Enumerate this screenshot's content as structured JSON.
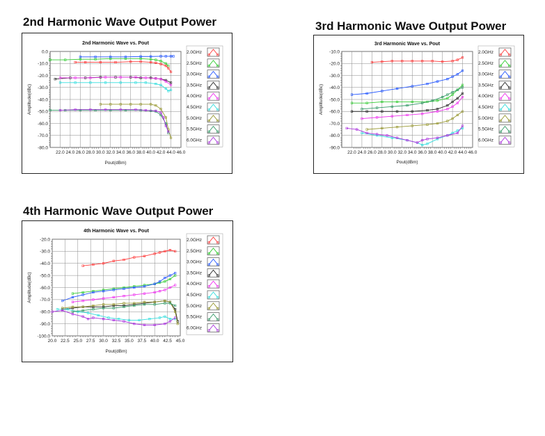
{
  "sections": [
    {
      "title": "2nd Harmonic Wave Output Power"
    },
    {
      "title": "3rd Harmonic Wave Output Power"
    },
    {
      "title": "4th Harmonic Wave Output Power"
    }
  ],
  "legend_colors": [
    "#ff3b3b",
    "#33cc33",
    "#2255ff",
    "#222222",
    "#ee33ee",
    "#33dddd",
    "#999933",
    "#339966",
    "#aa33dd"
  ],
  "chart_data": [
    {
      "type": "line",
      "title": "2nd Harmonic Wave vs. Pout",
      "xlabel": "Pout(dBm)",
      "ylabel": "Amplitude(dBc)",
      "xlim": [
        20.0,
        46.0
      ],
      "ylim": [
        -80.0,
        0.0
      ],
      "xticks": [
        22.0,
        24.0,
        26.0,
        28.0,
        30.0,
        32.0,
        34.0,
        36.0,
        38.0,
        40.0,
        42.0,
        44.0,
        46.0
      ],
      "xtick_labels": [
        "22.0",
        "24.0",
        "26.0",
        "28.0",
        "30.0",
        "32.0",
        "34.0",
        "36.0",
        "38.0",
        "40.0",
        "42.0",
        "44.0",
        "46.0"
      ],
      "yticks": [
        0,
        -10,
        -20,
        -30,
        -40,
        -50,
        -60,
        -70,
        -80
      ],
      "ytick_labels": [
        "0.0",
        "-10.0",
        "-20.0",
        "-30.0",
        "-40.0",
        "-50.0",
        "-60.0",
        "-70.0",
        "-80.0"
      ],
      "grid": true,
      "legend_position": "right",
      "series": [
        {
          "name": "2.0GHz",
          "x": [
            25,
            27,
            30,
            33,
            36,
            38,
            40,
            41,
            42,
            43,
            43.5,
            44
          ],
          "y": [
            -9,
            -9,
            -9,
            -9,
            -8.5,
            -8.5,
            -9,
            -9.5,
            -10.5,
            -12,
            -14,
            -17
          ]
        },
        {
          "name": "2.5GHz",
          "x": [
            20,
            23,
            26,
            29,
            32,
            35,
            38,
            40,
            41,
            42,
            43,
            43.5
          ],
          "y": [
            -7,
            -7,
            -6.5,
            -6.5,
            -6,
            -6,
            -6,
            -6.5,
            -7,
            -8,
            -10,
            -12
          ]
        },
        {
          "name": "3.0GHz",
          "x": [
            26,
            29,
            32,
            35,
            38,
            40,
            42,
            43,
            44,
            44.5
          ],
          "y": [
            -4.5,
            -4.5,
            -4.5,
            -4.5,
            -4.2,
            -4.2,
            -4,
            -4,
            -4,
            -4
          ]
        },
        {
          "name": "3.5GHz",
          "x": [
            21,
            24,
            27,
            30,
            33,
            36,
            38,
            40,
            41,
            42,
            43,
            44
          ],
          "y": [
            -23,
            -22,
            -22,
            -21.5,
            -21.5,
            -21.5,
            -22,
            -22,
            -22.5,
            -23,
            -24,
            -26
          ]
        },
        {
          "name": "4.0GHz",
          "x": [
            22,
            25,
            28,
            31,
            34,
            37,
            39,
            41,
            42,
            43,
            44
          ],
          "y": [
            -22,
            -22,
            -22,
            -21.5,
            -21.5,
            -21.5,
            -22,
            -22.5,
            -23,
            -25,
            -28
          ]
        },
        {
          "name": "4.5GHz",
          "x": [
            22,
            25,
            28,
            31,
            34,
            37,
            39,
            41,
            42,
            43,
            43.5,
            44
          ],
          "y": [
            -26,
            -26,
            -26,
            -26,
            -26,
            -26,
            -26,
            -27,
            -28,
            -31,
            -33,
            -32
          ]
        },
        {
          "name": "5.0GHz",
          "x": [
            30,
            32,
            34,
            36,
            38,
            40,
            41,
            42,
            43,
            43.5,
            44
          ],
          "y": [
            -44,
            -44,
            -44,
            -44,
            -44,
            -44,
            -45,
            -48,
            -55,
            -65,
            -72
          ]
        },
        {
          "name": "5.5GHz",
          "x": [
            20,
            23,
            26,
            29,
            32,
            35,
            38,
            40,
            41,
            42,
            43,
            43.5
          ],
          "y": [
            -49,
            -49,
            -49,
            -49,
            -49,
            -49,
            -49,
            -49.5,
            -50,
            -53,
            -60,
            -68
          ]
        },
        {
          "name": "6.0GHz",
          "x": [
            22,
            25,
            28,
            31,
            34,
            37,
            39,
            41,
            42,
            42.5,
            43,
            43.5
          ],
          "y": [
            -49,
            -48.5,
            -48.5,
            -48.5,
            -48.5,
            -48.5,
            -49,
            -49.5,
            -51,
            -55,
            -62,
            -67
          ]
        }
      ]
    },
    {
      "type": "line",
      "title": "3rd Harmonic Wave vs. Pout",
      "xlabel": "Pout(dBm)",
      "ylabel": "Amplitude(dBc)",
      "xlim": [
        20.0,
        46.0
      ],
      "ylim": [
        -90.0,
        -10.0
      ],
      "xticks": [
        22.0,
        24.0,
        26.0,
        28.0,
        30.0,
        32.0,
        34.0,
        36.0,
        38.0,
        40.0,
        42.0,
        44.0,
        46.0
      ],
      "xtick_labels": [
        "22.0",
        "24.0",
        "26.0",
        "28.0",
        "30.0",
        "32.0",
        "34.0",
        "36.0",
        "38.0",
        "40.0",
        "42.0",
        "44.0",
        "46.0"
      ],
      "yticks": [
        -10,
        -20,
        -30,
        -40,
        -50,
        -60,
        -70,
        -80,
        -90
      ],
      "ytick_labels": [
        "-10.0",
        "-20.0",
        "-30.0",
        "-40.0",
        "-50.0",
        "-60.0",
        "-70.0",
        "-80.0",
        "-90.0"
      ],
      "grid": true,
      "legend_position": "right",
      "series": [
        {
          "name": "2.0GHz",
          "x": [
            26,
            28,
            30,
            32,
            34,
            36,
            38,
            40,
            42,
            43,
            44
          ],
          "y": [
            -19,
            -18.5,
            -18,
            -18,
            -18,
            -18,
            -18,
            -18.5,
            -18,
            -17,
            -15
          ]
        },
        {
          "name": "2.5GHz",
          "x": [
            22,
            25,
            28,
            31,
            34,
            37,
            39,
            41,
            42,
            43,
            44
          ],
          "y": [
            -53,
            -53,
            -52,
            -52,
            -52,
            -52,
            -51,
            -49,
            -46,
            -42,
            -38
          ]
        },
        {
          "name": "3.0GHz",
          "x": [
            22,
            25,
            28,
            31,
            34,
            37,
            39,
            41,
            42,
            43,
            44
          ],
          "y": [
            -46,
            -45,
            -43,
            -41,
            -39,
            -37,
            -35,
            -33,
            -31,
            -29,
            -26
          ]
        },
        {
          "name": "3.5GHz",
          "x": [
            22,
            25,
            28,
            31,
            34,
            37,
            39,
            41,
            42,
            43,
            44
          ],
          "y": [
            -60,
            -60,
            -60,
            -60,
            -60,
            -59,
            -58,
            -55,
            -52,
            -49,
            -45
          ]
        },
        {
          "name": "4.0GHz",
          "x": [
            24,
            27,
            30,
            33,
            36,
            39,
            41,
            42,
            43,
            44
          ],
          "y": [
            -66,
            -65,
            -64,
            -63,
            -62,
            -60,
            -58,
            -56,
            -53,
            -48
          ]
        },
        {
          "name": "4.5GHz",
          "x": [
            24,
            27,
            30,
            33,
            35,
            36,
            37,
            39,
            41,
            42,
            43,
            44
          ],
          "y": [
            -78,
            -80,
            -82,
            -84,
            -86,
            -88,
            -87,
            -83,
            -80,
            -78,
            -76,
            -74
          ]
        },
        {
          "name": "5.0GHz",
          "x": [
            25,
            28,
            31,
            34,
            37,
            39,
            41,
            42,
            43,
            44
          ],
          "y": [
            -75,
            -74,
            -73,
            -72,
            -71,
            -70,
            -68,
            -66,
            -63,
            -60
          ]
        },
        {
          "name": "5.5GHz",
          "x": [
            24,
            27,
            30,
            33,
            36,
            38,
            40,
            41,
            42,
            43,
            44
          ],
          "y": [
            -58,
            -57,
            -56,
            -55,
            -53,
            -51,
            -48,
            -46,
            -44,
            -42,
            -40
          ]
        },
        {
          "name": "6.0GHz",
          "x": [
            21,
            23,
            25,
            27,
            29,
            31,
            33,
            35,
            36,
            37,
            39,
            41,
            43,
            44
          ],
          "y": [
            -74,
            -75,
            -78,
            -79,
            -80,
            -82,
            -84,
            -86,
            -84,
            -83,
            -82,
            -80,
            -78,
            -72
          ]
        }
      ]
    },
    {
      "type": "line",
      "title": "4th Harmonic Wave vs. Pout",
      "xlabel": "Pout(dBm)",
      "ylabel": "Amplitude(dBc)",
      "xlim": [
        20.0,
        45.0
      ],
      "ylim": [
        -100.0,
        -20.0
      ],
      "xticks": [
        20.0,
        22.5,
        25.0,
        27.5,
        30.0,
        32.5,
        35.0,
        37.5,
        40.0,
        42.5,
        45.0
      ],
      "xtick_labels": [
        "20.0",
        "22.5",
        "25.0",
        "27.5",
        "30.0",
        "32.5",
        "35.0",
        "37.5",
        "40.0",
        "42.5",
        "45.0"
      ],
      "yticks": [
        -20,
        -30,
        -40,
        -50,
        -60,
        -70,
        -80,
        -90,
        -100
      ],
      "ytick_labels": [
        "-20.0",
        "-30.0",
        "-40.0",
        "-50.0",
        "-60.0",
        "-70.0",
        "-80.0",
        "-90.0",
        "-100.0"
      ],
      "grid": true,
      "legend_position": "right",
      "series": [
        {
          "name": "2.0GHz",
          "x": [
            26,
            28,
            30,
            32,
            34,
            36,
            38,
            40,
            41,
            42,
            43,
            44
          ],
          "y": [
            -42,
            -41,
            -40,
            -38,
            -37,
            -35,
            -34,
            -32,
            -31,
            -30,
            -29,
            -30
          ]
        },
        {
          "name": "2.5GHz",
          "x": [
            24,
            26,
            28,
            30,
            32,
            34,
            36,
            38,
            40,
            41,
            42,
            43,
            44
          ],
          "y": [
            -65,
            -64,
            -63,
            -62,
            -61,
            -60,
            -59,
            -58,
            -57,
            -56,
            -55,
            -53,
            -50
          ]
        },
        {
          "name": "3.0GHz",
          "x": [
            22,
            24,
            26,
            28,
            30,
            32,
            34,
            36,
            38,
            40,
            41,
            42,
            43,
            44
          ],
          "y": [
            -71,
            -68,
            -66,
            -64,
            -63,
            -62,
            -61,
            -60,
            -59,
            -57,
            -55,
            -52,
            -50,
            -48
          ]
        },
        {
          "name": "3.5GHz",
          "x": [
            22,
            24,
            26,
            28,
            30,
            32,
            34,
            36,
            38,
            40,
            42,
            43,
            44,
            44.5
          ],
          "y": [
            -78,
            -77,
            -76,
            -76,
            -76,
            -75,
            -75,
            -74,
            -73,
            -72,
            -71,
            -72,
            -78,
            -88
          ]
        },
        {
          "name": "4.0GHz",
          "x": [
            24,
            26,
            28,
            30,
            32,
            34,
            36,
            38,
            40,
            41,
            42,
            43,
            44
          ],
          "y": [
            -72,
            -71,
            -70,
            -69,
            -68,
            -67,
            -66,
            -65,
            -64,
            -63,
            -62,
            -60,
            -58
          ]
        },
        {
          "name": "4.5GHz",
          "x": [
            21,
            23,
            25,
            27,
            29,
            31,
            33,
            35,
            37,
            39,
            41,
            42,
            43,
            44
          ],
          "y": [
            -78,
            -78,
            -80,
            -81,
            -83,
            -85,
            -86,
            -87,
            -87,
            -86,
            -85,
            -84,
            -86,
            -86
          ]
        },
        {
          "name": "5.0GHz",
          "x": [
            22,
            24,
            26,
            28,
            30,
            32,
            34,
            36,
            38,
            40,
            42,
            43,
            44,
            44.5
          ],
          "y": [
            -77,
            -76,
            -76,
            -75,
            -74,
            -74,
            -73,
            -73,
            -72,
            -72,
            -71,
            -72,
            -80,
            -90
          ]
        },
        {
          "name": "5.5GHz",
          "x": [
            24,
            26,
            28,
            30,
            32,
            34,
            36,
            38,
            40,
            42,
            43,
            44
          ],
          "y": [
            -80,
            -79,
            -78,
            -77,
            -77,
            -76,
            -75,
            -74,
            -74,
            -73,
            -73,
            -75
          ]
        },
        {
          "name": "6.0GHz",
          "x": [
            20,
            22,
            24,
            26,
            27,
            28,
            30,
            32,
            34,
            36,
            38,
            40,
            42,
            43,
            44
          ],
          "y": [
            -80,
            -79,
            -82,
            -84,
            -86,
            -85,
            -86,
            -87,
            -88,
            -90,
            -91,
            -91,
            -90,
            -88,
            -85
          ]
        }
      ]
    }
  ]
}
